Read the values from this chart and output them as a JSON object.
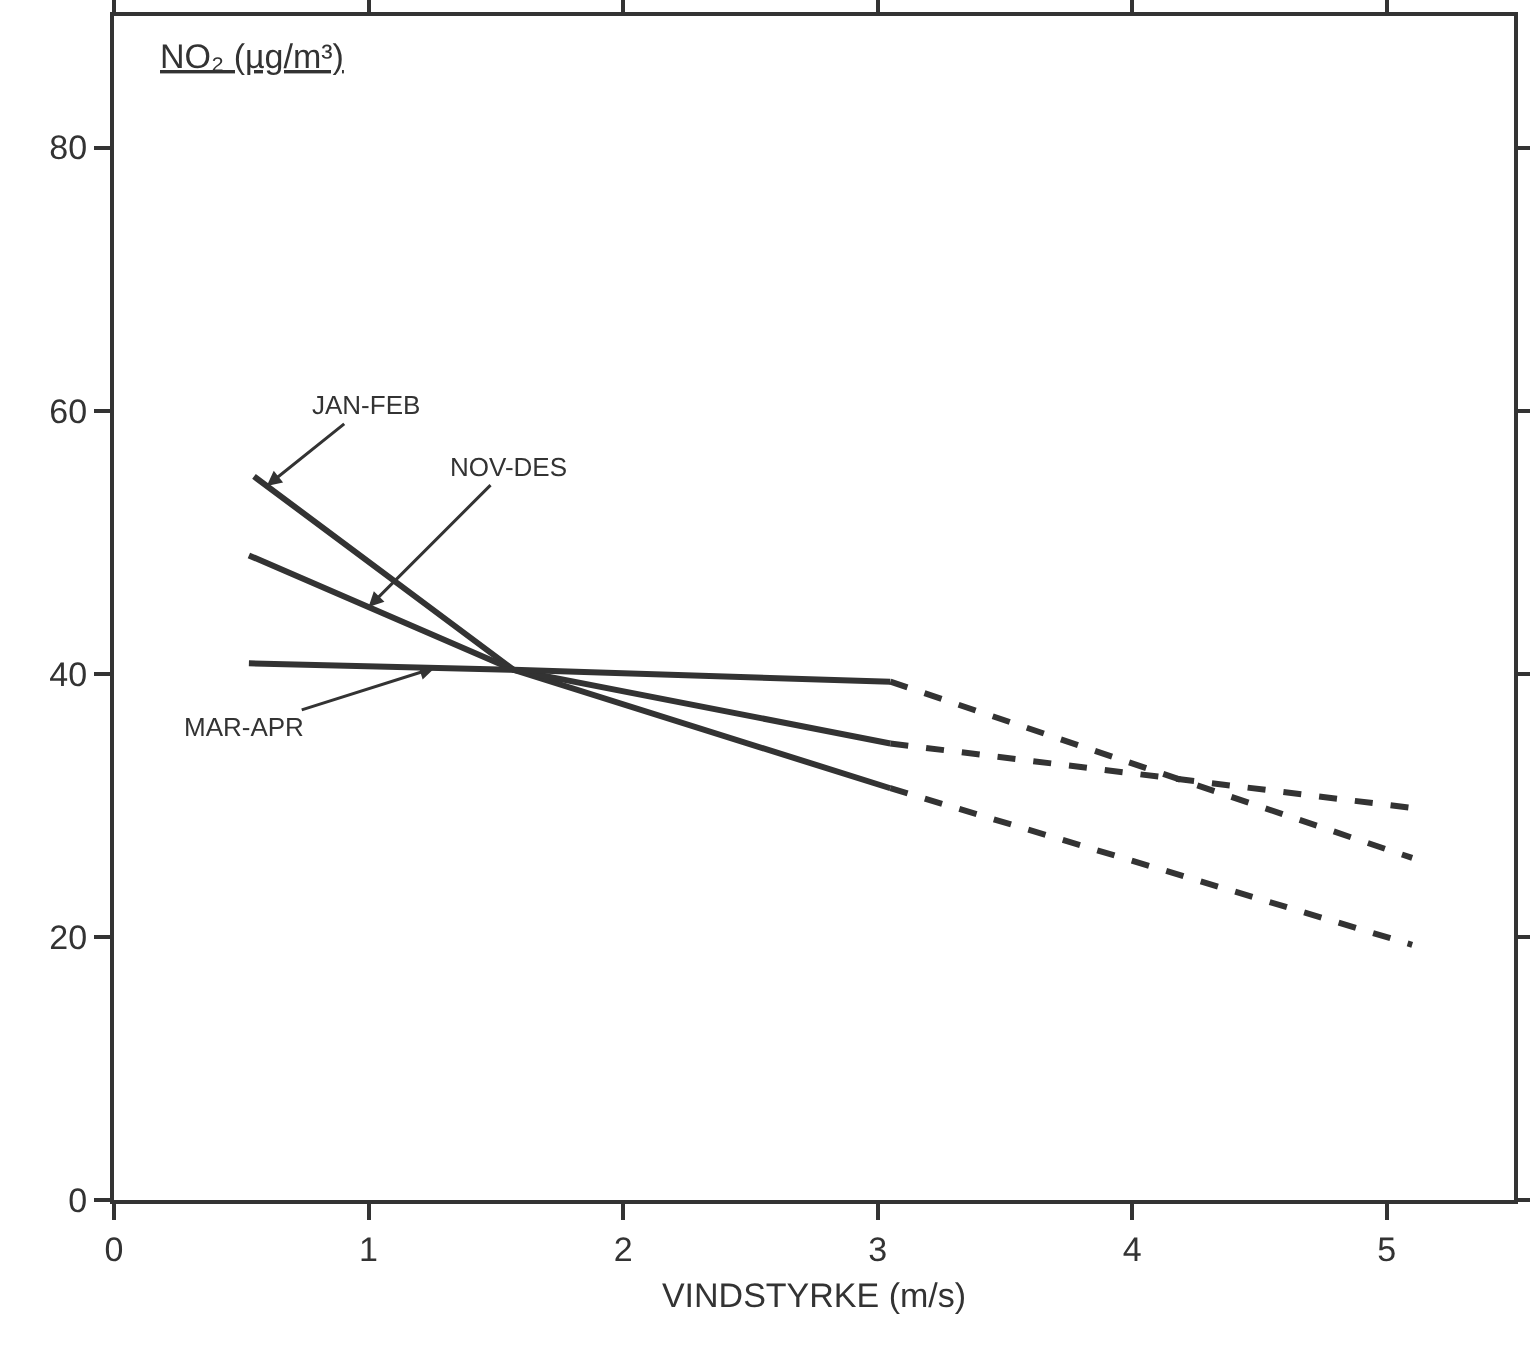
{
  "chart_data": {
    "type": "line",
    "xlabel": "VINDSTYRKE (m/s)",
    "ylabel": "NO₂ (µg/m³)",
    "xlim": [
      0,
      5.5
    ],
    "xticks": [
      0,
      1,
      2,
      3,
      4,
      5
    ],
    "ylim": [
      0,
      90
    ],
    "yticks": [
      0,
      20,
      40,
      60,
      80
    ],
    "grid": false,
    "legend": false,
    "marker": "none",
    "series": [
      {
        "name": "JAN-FEB",
        "color": "#333333",
        "line_style": "solid",
        "x": [
          0.55,
          1.57,
          3.05
        ],
        "values": [
          55,
          40.3,
          31.3
        ]
      },
      {
        "name": "NOV-DES",
        "color": "#333333",
        "line_style": "solid",
        "x": [
          0.53,
          1.57,
          3.05
        ],
        "values": [
          49,
          40.3,
          34.7
        ]
      },
      {
        "name": "MAR-APR",
        "color": "#333333",
        "line_style": "solid",
        "x": [
          0.53,
          1.57,
          3.05
        ],
        "values": [
          40.8,
          40.3,
          39.4
        ]
      },
      {
        "color": "#333333",
        "line_style": "dashed",
        "x": [
          3.05,
          5.1
        ],
        "values": [
          31.3,
          19.4
        ]
      },
      {
        "color": "#333333",
        "line_style": "dashed",
        "x": [
          3.05,
          5.1
        ],
        "values": [
          34.7,
          29.8
        ]
      },
      {
        "color": "#333333",
        "line_style": "dashed",
        "x": [
          3.05,
          5.1
        ],
        "values": [
          39.4,
          26
        ]
      }
    ]
  }
}
